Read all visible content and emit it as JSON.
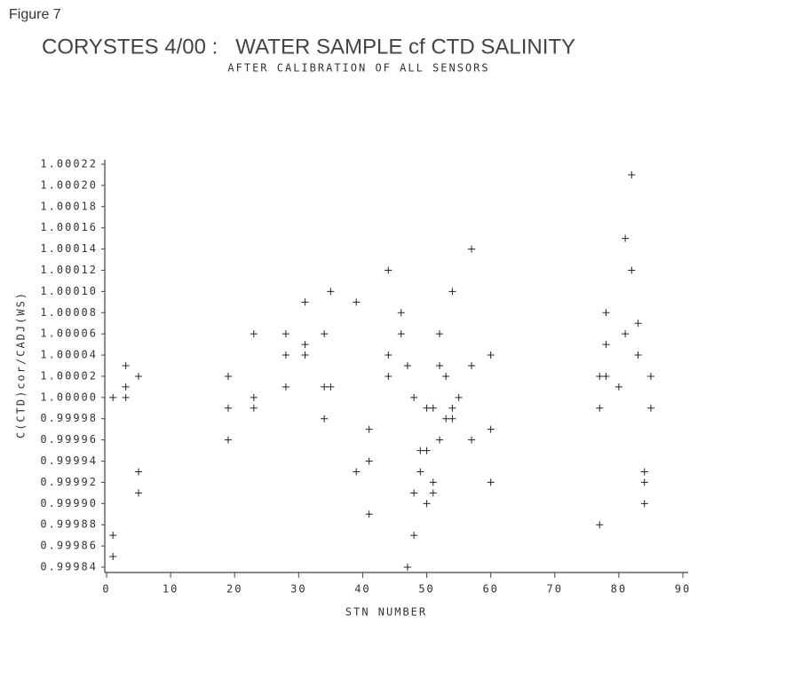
{
  "figure_label": "Figure 7",
  "chart_data": {
    "type": "scatter",
    "title": "CORYSTES 4/00 :   WATER SAMPLE cf CTD SALINITY",
    "subtitle": "AFTER CALIBRATION OF ALL SENSORS",
    "x_label": "STN NUMBER",
    "y_label": "C(CTD)cor/CADJ(WS)",
    "marker": "+",
    "color": "#222222",
    "xlim": [
      0,
      90.8
    ],
    "xticks": [
      0,
      10,
      20,
      30,
      40,
      50,
      60,
      70,
      80,
      90
    ],
    "ylim": [
      0.99984,
      1.00022
    ],
    "yticks": [
      1.00022,
      {
        "value": 1.0002,
        "label": "1.00020"
      },
      1.00018,
      1.00016,
      1.00014,
      1.00012,
      {
        "value": 1.0001,
        "label": "1.00010"
      },
      1.00008,
      1.00006,
      1.00004,
      1.00002,
      {
        "value": 1,
        "label": "1.00000"
      },
      0.99998,
      0.99996,
      0.99994,
      0.99992,
      {
        "value": 0.9999,
        "label": "0.99990"
      },
      0.99988,
      0.99986,
      0.99984
    ],
    "x": [
      1,
      1,
      1,
      3,
      3,
      3,
      5,
      5,
      5,
      19,
      19,
      19,
      23,
      23,
      23,
      28,
      28,
      28,
      31,
      31,
      31,
      34,
      34,
      34,
      35,
      35,
      39,
      39,
      41,
      41,
      41,
      44,
      44,
      44,
      46,
      46,
      47,
      47,
      48,
      48,
      48,
      49,
      49,
      50,
      50,
      50,
      51,
      51,
      51,
      52,
      52,
      52,
      53,
      53,
      54,
      54,
      54,
      55,
      57,
      57,
      57,
      60,
      60,
      60,
      77,
      77,
      77,
      78,
      78,
      78,
      80,
      81,
      81,
      82,
      82,
      83,
      83,
      84,
      84,
      84,
      85,
      85
    ],
    "y": [
      1.0,
      0.99987,
      0.99985,
      1.00003,
      1.00001,
      1.0,
      1.00002,
      0.99993,
      0.99991,
      1.00002,
      0.99999,
      0.99996,
      1.00006,
      1.0,
      0.99999,
      1.00006,
      1.00004,
      1.00001,
      1.00009,
      1.00005,
      1.00004,
      1.00006,
      1.00001,
      0.99998,
      1.00001,
      1.0001,
      1.00009,
      0.99993,
      0.99997,
      0.99994,
      0.99989,
      1.00012,
      1.00004,
      1.00002,
      1.00008,
      1.00006,
      1.00003,
      0.99984,
      1.0,
      0.99991,
      0.99987,
      0.99995,
      0.99993,
      0.99995,
      0.99999,
      0.9999,
      0.99999,
      0.99992,
      0.99991,
      1.00006,
      1.00003,
      0.99996,
      1.00002,
      0.99998,
      0.99998,
      0.99999,
      1.0001,
      1.0,
      1.00014,
      1.00003,
      0.99996,
      1.00004,
      0.99997,
      0.99992,
      1.00002,
      0.99999,
      0.99988,
      1.00002,
      1.00008,
      1.00005,
      1.00001,
      1.00015,
      1.00006,
      1.00021,
      1.00012,
      1.00007,
      1.00004,
      0.99993,
      0.99992,
      0.9999,
      1.00002,
      0.99999
    ]
  }
}
